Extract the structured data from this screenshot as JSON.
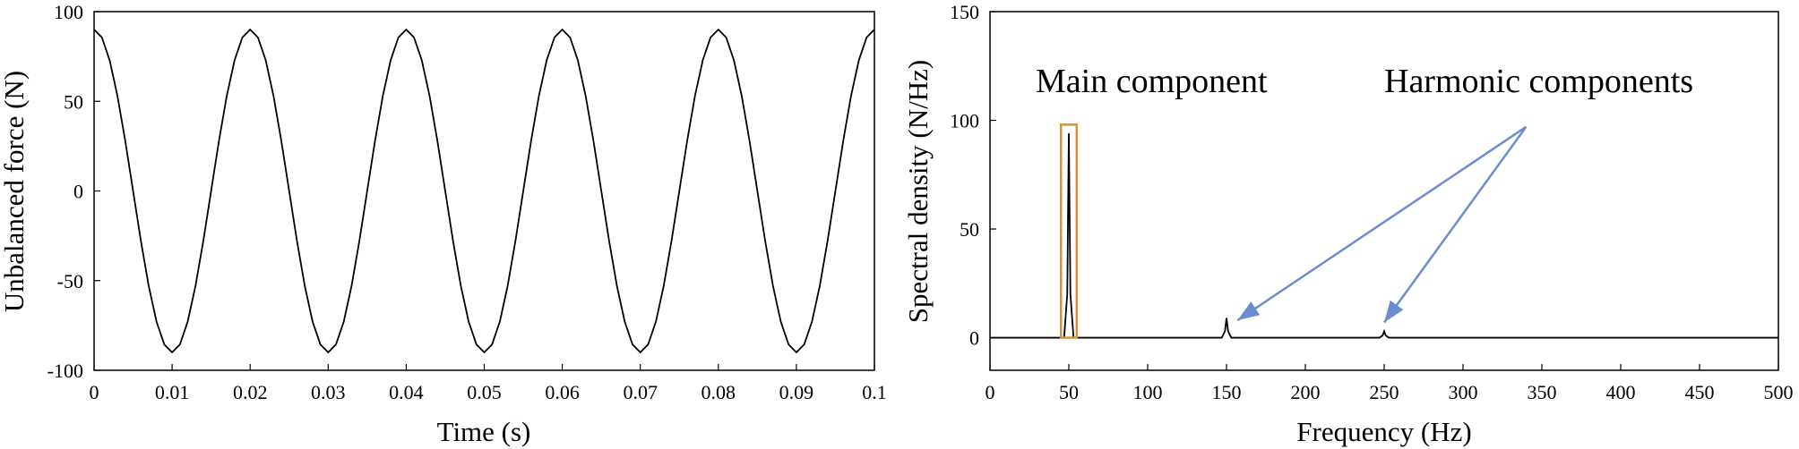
{
  "chart_data": [
    {
      "type": "line",
      "xlabel": "Time (s)",
      "ylabel": "Unbalanced force (N)",
      "xlim": [
        0,
        0.1
      ],
      "ylim": [
        -100,
        100
      ],
      "xticks": [
        "0",
        "0.01",
        "0.02",
        "0.03",
        "0.04",
        "0.05",
        "0.06",
        "0.07",
        "0.08",
        "0.09",
        "0.1"
      ],
      "yticks": [
        "-100",
        "-50",
        "0",
        "50",
        "100"
      ],
      "grid": false,
      "series": [
        {
          "function": "90*cos(2*pi*50*t)",
          "amplitude": 90,
          "frequency_hz": 50,
          "x_peaks": [
            0,
            0.02,
            0.04,
            0.06,
            0.08,
            0.1
          ],
          "y_peak": 90,
          "x_troughs": [
            0.01,
            0.03,
            0.05,
            0.07,
            0.09
          ],
          "y_trough": -90,
          "color": "#000000"
        }
      ]
    },
    {
      "type": "line",
      "xlabel": "Frequency (Hz)",
      "ylabel": "Spectral density (N/Hz)",
      "xlim": [
        0,
        500
      ],
      "ylim": [
        -15,
        150
      ],
      "xticks": [
        "0",
        "50",
        "100",
        "150",
        "200",
        "250",
        "300",
        "350",
        "400",
        "450",
        "500"
      ],
      "yticks": [
        "0",
        "50",
        "100",
        "150"
      ],
      "grid": false,
      "series": [
        {
          "x": [
            0,
            47,
            49,
            50,
            51,
            53,
            147,
            149,
            150,
            151,
            153,
            247,
            249,
            250,
            251,
            253,
            500
          ],
          "y": [
            0,
            0,
            20,
            94,
            20,
            0,
            0,
            3,
            9,
            3,
            0,
            0,
            1,
            3,
            1,
            0,
            0
          ],
          "color": "#000000"
        }
      ],
      "annotations": [
        {
          "text": "Main component",
          "color": "#d4913e",
          "box_x": [
            45,
            55
          ],
          "box_y": [
            0,
            98
          ]
        },
        {
          "text": "Harmonic components",
          "color": "#6b8cce",
          "arrow_from": [
            340,
            97
          ],
          "arrow_to": [
            [
              157,
              8
            ],
            [
              250,
              7
            ]
          ]
        }
      ]
    }
  ]
}
